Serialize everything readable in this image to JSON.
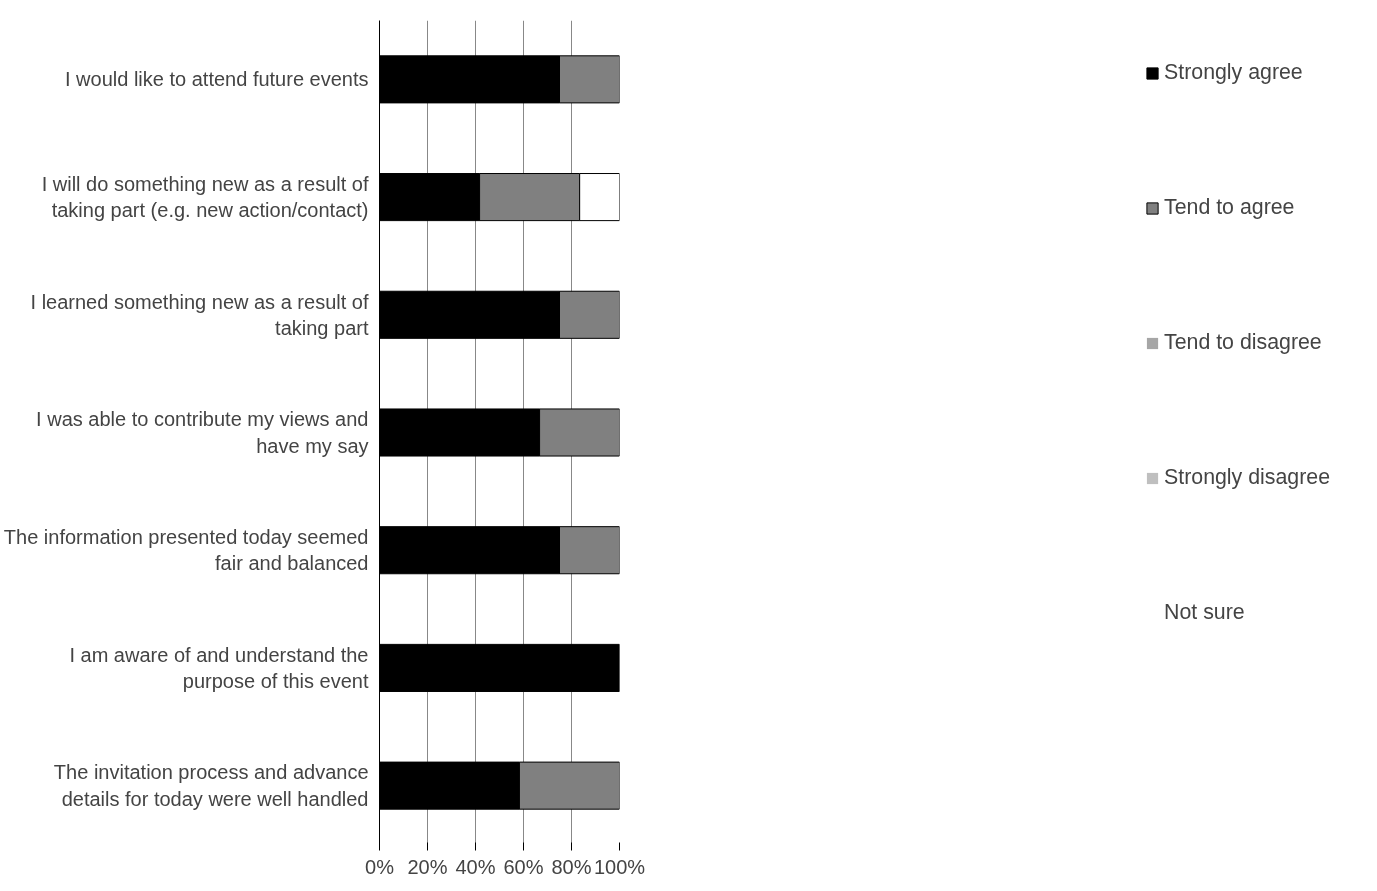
{
  "chart_data": {
    "type": "bar",
    "orientation": "horizontal",
    "stacked": true,
    "categories": [
      "I would like to attend future events",
      "I will do something new as a result of taking part (e.g. new action/contact)",
      "I learned something new as a result of taking part",
      "I was able to contribute my views and have my say",
      "The information presented today seemed fair and balanced",
      "I am aware of and understand the purpose of this event",
      "The invitation process and advance details for today were well handled"
    ],
    "series": [
      {
        "name": "Strongly agree",
        "color": "#000000",
        "values": [
          75,
          41.7,
          75,
          66.7,
          75,
          100,
          58.3
        ]
      },
      {
        "name": "Tend to agree",
        "color": "#808080",
        "values": [
          25,
          41.7,
          25,
          33.3,
          25,
          0,
          41.7
        ]
      },
      {
        "name": "Tend to disagree",
        "color": "#a6a6a6",
        "values": [
          0,
          0,
          0,
          0,
          0,
          0,
          0
        ]
      },
      {
        "name": "Strongly disagree",
        "color": "#bfbfbf",
        "values": [
          0,
          0,
          0,
          0,
          0,
          0,
          0
        ]
      },
      {
        "name": "Not sure",
        "color": "#ffffff",
        "values": [
          0,
          16.7,
          0,
          0,
          0,
          0,
          0
        ]
      }
    ],
    "xlim": [
      0,
      100
    ],
    "xticks": [
      {
        "value": 0,
        "label": "0%"
      },
      {
        "value": 20,
        "label": "20%"
      },
      {
        "value": 40,
        "label": "40%"
      },
      {
        "value": 60,
        "label": "60%"
      },
      {
        "value": 80,
        "label": "80%"
      },
      {
        "value": 100,
        "label": "100%"
      }
    ],
    "grid": "x",
    "legend": "right"
  }
}
